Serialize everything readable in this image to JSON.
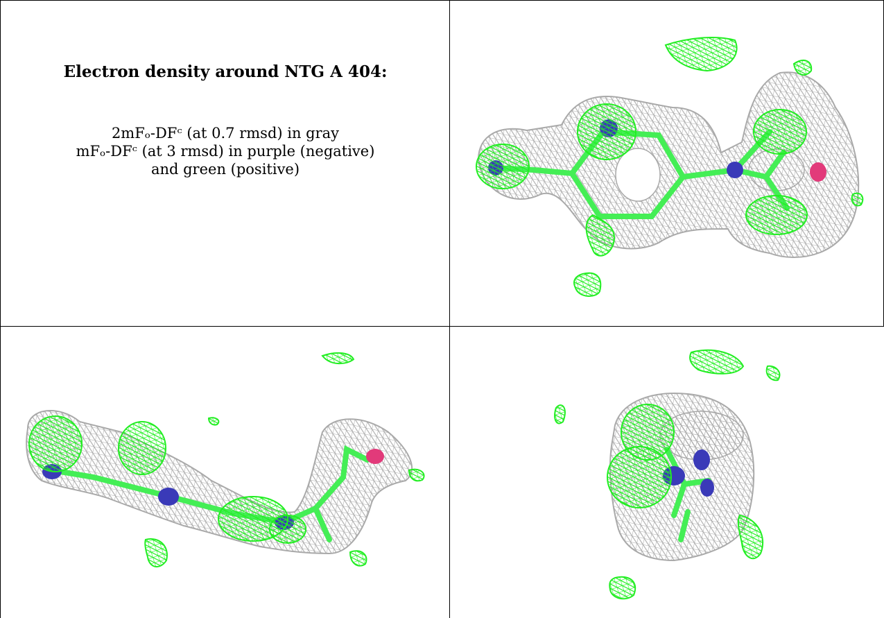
{
  "caption": {
    "title": "Electron density around NTG A 404:",
    "line1": "2mFₒ-DFᶜ (at 0.7 rmsd) in gray",
    "line2": "mFₒ-DFᶜ (at 3 rmsd) in purple (negative)",
    "line3": "and green (positive)"
  },
  "colors": {
    "mesh_2fofc": "#a9a9a9",
    "mesh_positive": "#22ee22",
    "carbon": "#44ee55",
    "nitrogen": "#3a3ab8",
    "oxygen": "#e23a7a",
    "border": "#000000"
  },
  "panels": [
    {
      "view": "top-right"
    },
    {
      "view": "bottom-left"
    },
    {
      "view": "bottom-right"
    }
  ]
}
